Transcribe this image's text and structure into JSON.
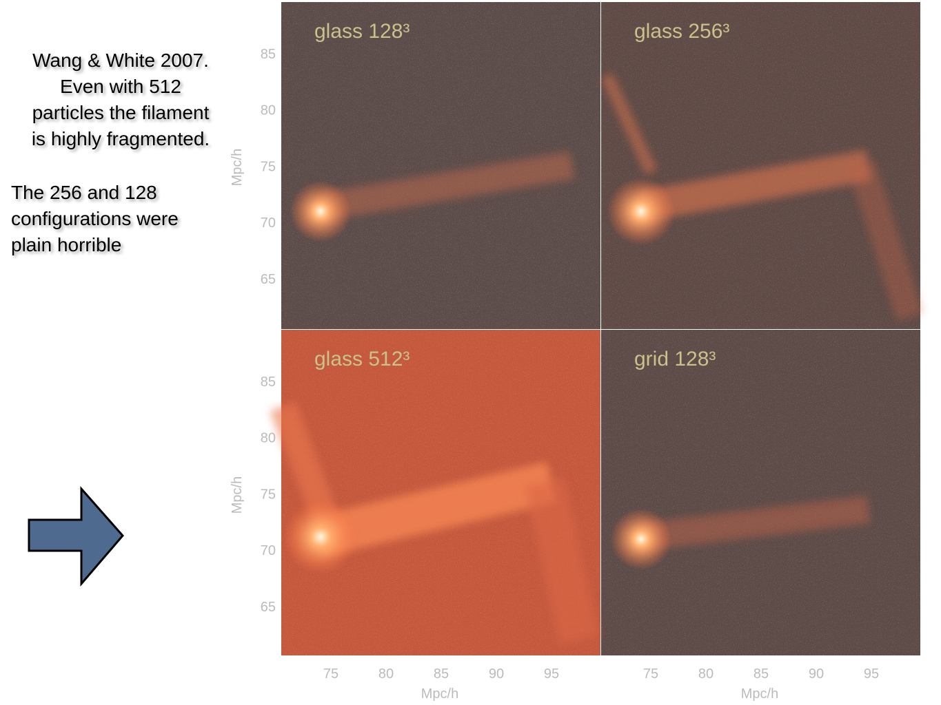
{
  "text": {
    "paragraph1": [
      "Wang & White 2007.",
      "Even with 512",
      "particles the filament",
      "is highly fragmented."
    ],
    "paragraph2": [
      "The 256 and 128",
      "configurations were",
      "plain horrible"
    ]
  },
  "panels": [
    {
      "label": "glass 128³"
    },
    {
      "label": "glass 256³"
    },
    {
      "label": "glass 512³"
    },
    {
      "label": "grid 128³"
    }
  ],
  "axes": {
    "y_ticks": [
      "85",
      "80",
      "75",
      "70",
      "65"
    ],
    "x_ticks": [
      "75",
      "80",
      "85",
      "90",
      "95"
    ],
    "axis_label": "Mpc/h"
  }
}
